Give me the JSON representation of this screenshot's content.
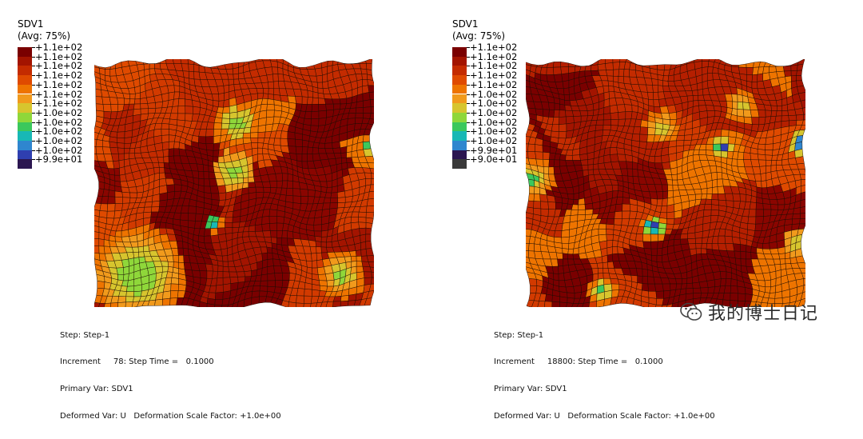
{
  "panels": [
    {
      "title": "SDV1",
      "subtitle": "(Avg: 75%)",
      "legend_labels": [
        "+1.1e+02",
        "+1.1e+02",
        "+1.1e+02",
        "+1.1e+02",
        "+1.1e+02",
        "+1.1e+02",
        "+1.1e+02",
        "+1.0e+02",
        "+1.0e+02",
        "+1.0e+02",
        "+1.0e+02",
        "+1.0e+02",
        "+9.9e+01"
      ],
      "legend_colors": [
        "#7a0000",
        "#a31400",
        "#c42b00",
        "#df4a00",
        "#ee7400",
        "#f19a1c",
        "#d7c52e",
        "#8fd73a",
        "#3bc85c",
        "#18b8b5",
        "#2f86cf",
        "#2f3fb0",
        "#2b1650"
      ],
      "info": {
        "step": "Step: Step-1",
        "increment": "Increment     78: Step Time =   0.1000",
        "primary": "Primary Var: SDV1",
        "deformed": "Deformed Var: U   Deformation Scale Factor: +1.0e+00"
      }
    },
    {
      "title": "SDV1",
      "subtitle": "(Avg: 75%)",
      "legend_labels": [
        "+1.1e+02",
        "+1.1e+02",
        "+1.1e+02",
        "+1.1e+02",
        "+1.1e+02",
        "+1.0e+02",
        "+1.0e+02",
        "+1.0e+02",
        "+1.0e+02",
        "+1.0e+02",
        "+1.0e+02",
        "+9.9e+01",
        "+9.0e+01"
      ],
      "legend_colors": [
        "#7a0000",
        "#a31400",
        "#c42b00",
        "#df4a00",
        "#ee7400",
        "#f19a1c",
        "#d7c52e",
        "#8fd73a",
        "#3bc85c",
        "#18b8b5",
        "#2f86cf",
        "#2b1650",
        "#3a3a3a"
      ],
      "info": {
        "step": "Step: Step-1",
        "increment": "Increment     18800: Step Time =   0.1000",
        "primary": "Primary Var: SDV1",
        "deformed": "Deformed Var: U   Deformation Scale Factor: +1.0e+00"
      }
    }
  ],
  "watermark": {
    "icon": "wechat-icon",
    "text": "我的博士日记"
  }
}
